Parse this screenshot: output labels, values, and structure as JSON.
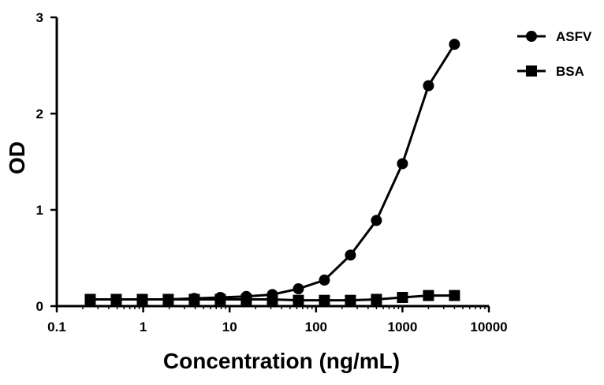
{
  "chart_data": {
    "type": "line",
    "title": "",
    "xlabel": "Concentration (ng/mL)",
    "ylabel": "OD",
    "xscale": "log",
    "xlim": [
      0.1,
      10000
    ],
    "ylim": [
      0,
      3
    ],
    "xticks": [
      "0.1",
      "1",
      "10",
      "100",
      "1000",
      "10000"
    ],
    "xtick_values": [
      0.1,
      1,
      10,
      100,
      1000,
      10000
    ],
    "yticks": [
      "0",
      "1",
      "2",
      "3"
    ],
    "ytick_values": [
      0,
      1,
      2,
      3
    ],
    "grid": false,
    "legend_position": "top-right",
    "x": [
      0.244,
      0.488,
      0.977,
      1.95,
      3.9,
      7.8,
      15.6,
      31.25,
      62.5,
      125,
      250,
      500,
      1000,
      2000,
      4000
    ],
    "series": [
      {
        "name": "ASFV",
        "marker": "circle",
        "color": "#000000",
        "values": [
          0.07,
          0.07,
          0.07,
          0.07,
          0.08,
          0.09,
          0.1,
          0.12,
          0.18,
          0.27,
          0.53,
          0.89,
          1.48,
          2.29,
          2.72
        ]
      },
      {
        "name": "BSA",
        "marker": "square",
        "color": "#000000",
        "values": [
          0.07,
          0.07,
          0.07,
          0.07,
          0.07,
          0.07,
          0.07,
          0.07,
          0.06,
          0.06,
          0.06,
          0.07,
          0.09,
          0.11,
          0.11
        ]
      }
    ]
  }
}
